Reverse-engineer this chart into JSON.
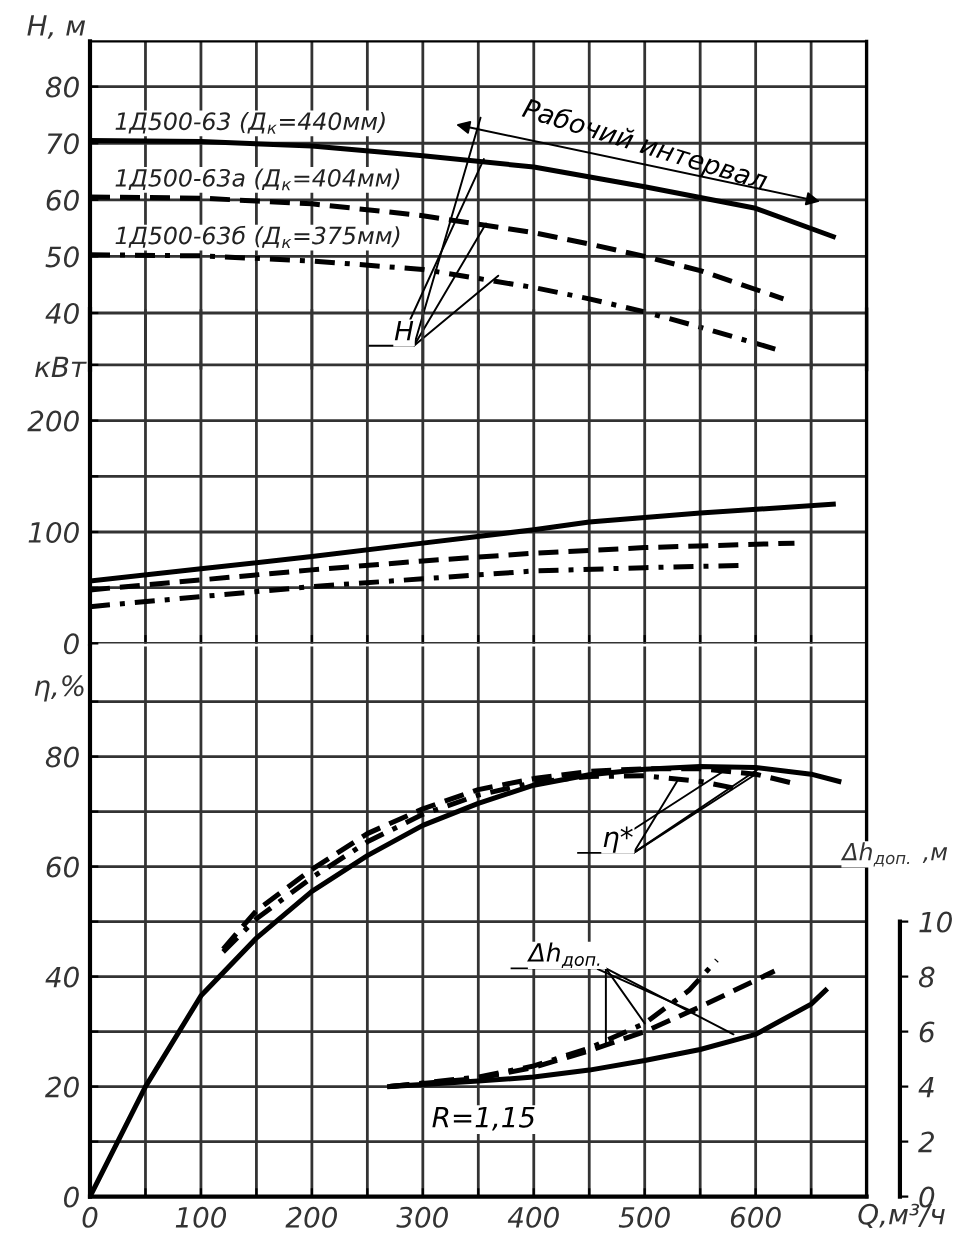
{
  "chart_data": [
    {
      "type": "line",
      "ylabel": "Н, м",
      "xlim": [
        0,
        700
      ],
      "ylim": [
        30,
        88
      ],
      "tick_labels": "y",
      "grid": true,
      "xticks": [
        0,
        {
          "value": 50,
          "label": null
        },
        100,
        {
          "value": 150,
          "label": null
        },
        200,
        {
          "value": 250,
          "label": null
        },
        300,
        {
          "value": 350,
          "label": null
        },
        400,
        {
          "value": 450,
          "label": null
        },
        500,
        {
          "value": 550,
          "label": null
        },
        600,
        {
          "value": 650,
          "label": null
        },
        {
          "value": 700,
          "label": null
        }
      ],
      "yticks": [
        40,
        50,
        60,
        70,
        80
      ],
      "annotations": [
        "Рабочий интервал",
        {
          "text": "Н",
          "x": 355,
          "y": 67.2
        }
      ],
      "series": [
        {
          "name": "1Д500-63 (Д$_{к}$=440мм)",
          "color": "#000000",
          "line_style": "solid",
          "x": [
            0,
            100,
            200,
            300,
            400,
            500,
            600,
            670
          ],
          "values": [
            70.5,
            70.3,
            69.5,
            67.8,
            65.8,
            62.3,
            58.5,
            53.5
          ]
        },
        {
          "name": "1Д500-63а (Д$_{к}$=404мм)",
          "color": "#000000",
          "line_style": "dashed",
          "x": [
            0,
            100,
            200,
            300,
            400,
            450,
            500,
            550,
            625
          ],
          "values": [
            60.5,
            60.3,
            59.3,
            57.2,
            54.2,
            52.2,
            50.0,
            47.5,
            42.5
          ]
        },
        {
          "name": "1Д500-63б (Д$_{к}$=375мм)",
          "color": "#000000",
          "line_style": "dashdot",
          "x": [
            0,
            100,
            200,
            300,
            400,
            450,
            500,
            550,
            620
          ],
          "values": [
            50.3,
            50.1,
            49.2,
            47.7,
            44.5,
            42.5,
            40.2,
            37.5,
            33.5
          ]
        }
      ]
    },
    {
      "type": "line",
      "ylabel": "кВт",
      "xlim": [
        0,
        700
      ],
      "ylim": [
        0,
        300
      ],
      "tick_labels": "y",
      "grid": true,
      "xticks": [
        0,
        {
          "value": 50,
          "label": null
        },
        100,
        {
          "value": 150,
          "label": null
        },
        200,
        {
          "value": 250,
          "label": null
        },
        300,
        {
          "value": 350,
          "label": null
        },
        400,
        {
          "value": 450,
          "label": null
        },
        500,
        {
          "value": 550,
          "label": null
        },
        600,
        {
          "value": 650,
          "label": null
        },
        {
          "value": 700,
          "label": null
        }
      ],
      "yticks": [
        0,
        {
          "value": 50,
          "label": null
        },
        100,
        {
          "value": 150,
          "label": null
        },
        200,
        {
          "value": 250,
          "label": null
        }
      ],
      "series": [
        {
          "color": "#000000",
          "line_style": "solid",
          "x": [
            0,
            100,
            200,
            300,
            400,
            450,
            550,
            670
          ],
          "values": [
            56,
            67,
            78,
            90,
            102,
            109,
            117,
            125
          ]
        },
        {
          "color": "#000000",
          "line_style": "dashed",
          "x": [
            0,
            100,
            200,
            300,
            400,
            500,
            635
          ],
          "values": [
            48,
            57,
            66,
            74,
            81,
            86,
            90
          ]
        },
        {
          "color": "#000000",
          "line_style": "dashdot",
          "x": [
            0,
            100,
            200,
            300,
            400,
            500,
            588
          ],
          "values": [
            33,
            42,
            51,
            58,
            65,
            68,
            70
          ]
        }
      ]
    },
    {
      "type": "line",
      "ylabel": "η,%",
      "xlabel": "Q,м³/ч",
      "y2label": "Δh$_{доп.}$ ,м",
      "xlim": [
        0,
        700
      ],
      "ylim": [
        0,
        100
      ],
      "y2lim": [
        0,
        20
      ],
      "grid": true,
      "xticks": [
        0,
        {
          "value": 50,
          "label": null
        },
        100,
        {
          "value": 150,
          "label": null
        },
        200,
        {
          "value": 250,
          "label": null
        },
        300,
        {
          "value": 350,
          "label": null
        },
        400,
        {
          "value": 450,
          "label": null
        },
        500,
        {
          "value": 550,
          "label": null
        },
        600,
        {
          "value": 650,
          "label": null
        },
        {
          "value": 700,
          "label": null
        }
      ],
      "yticks": [
        0,
        {
          "value": 10,
          "label": null
        },
        20,
        {
          "value": 30,
          "label": null
        },
        40,
        {
          "value": 50,
          "label": null
        },
        60,
        {
          "value": 70,
          "label": null
        },
        80,
        {
          "value": 90,
          "label": null
        }
      ],
      "y2ticks": [
        0,
        2,
        4,
        6,
        8,
        10
      ],
      "annotations": [
        {
          "text": "η*",
          "x": 570,
          "y": 77.2
        },
        {
          "text": "Δh$_{доп.}$",
          "x": 545,
          "y": 33.5
        },
        "R=1,15"
      ],
      "series": [
        {
          "color": "#000000",
          "line_style": "solid",
          "x": [
            0,
            50,
            100,
            150,
            200,
            250,
            300,
            350,
            400,
            450,
            500,
            550,
            600,
            650,
            675
          ],
          "values": [
            0,
            20,
            36.5,
            47,
            55.5,
            62,
            67.5,
            71.5,
            74.8,
            76.7,
            77.7,
            78.2,
            78,
            76.8,
            75.5
          ]
        },
        {
          "color": "#000000",
          "line_style": "dashed",
          "x": [
            120,
            150,
            200,
            250,
            300,
            350,
            400,
            450,
            500,
            550,
            600,
            633
          ],
          "values": [
            45,
            52,
            59.5,
            66,
            70.5,
            74,
            76,
            77.3,
            77.8,
            77.8,
            76.8,
            75.2
          ]
        },
        {
          "color": "#000000",
          "line_style": "dashdot",
          "x": [
            120,
            150,
            200,
            250,
            300,
            350,
            400,
            450,
            500,
            550,
            580
          ],
          "values": [
            44.5,
            50.5,
            58,
            64.5,
            69.5,
            73,
            75.3,
            76.4,
            76.5,
            75.5,
            74.3
          ]
        },
        {
          "color": "#000000",
          "line_style": "solid",
          "axis": "y2",
          "x": [
            270,
            350,
            400,
            450,
            500,
            550,
            600,
            650,
            663
          ],
          "values": [
            4.0,
            4.2,
            4.35,
            4.6,
            4.95,
            5.35,
            5.9,
            7.0,
            7.5
          ]
        },
        {
          "color": "#000000",
          "line_style": "dashed",
          "axis": "y2",
          "x": [
            270,
            350,
            400,
            450,
            500,
            550,
            617
          ],
          "values": [
            4.0,
            4.3,
            4.7,
            5.3,
            6.0,
            6.9,
            8.2
          ]
        },
        {
          "color": "#000000",
          "line_style": "dashdot",
          "axis": "y2",
          "x": [
            270,
            350,
            400,
            450,
            500,
            540,
            565
          ],
          "values": [
            4.0,
            4.35,
            4.75,
            5.4,
            6.3,
            7.5,
            8.6
          ]
        }
      ]
    }
  ]
}
